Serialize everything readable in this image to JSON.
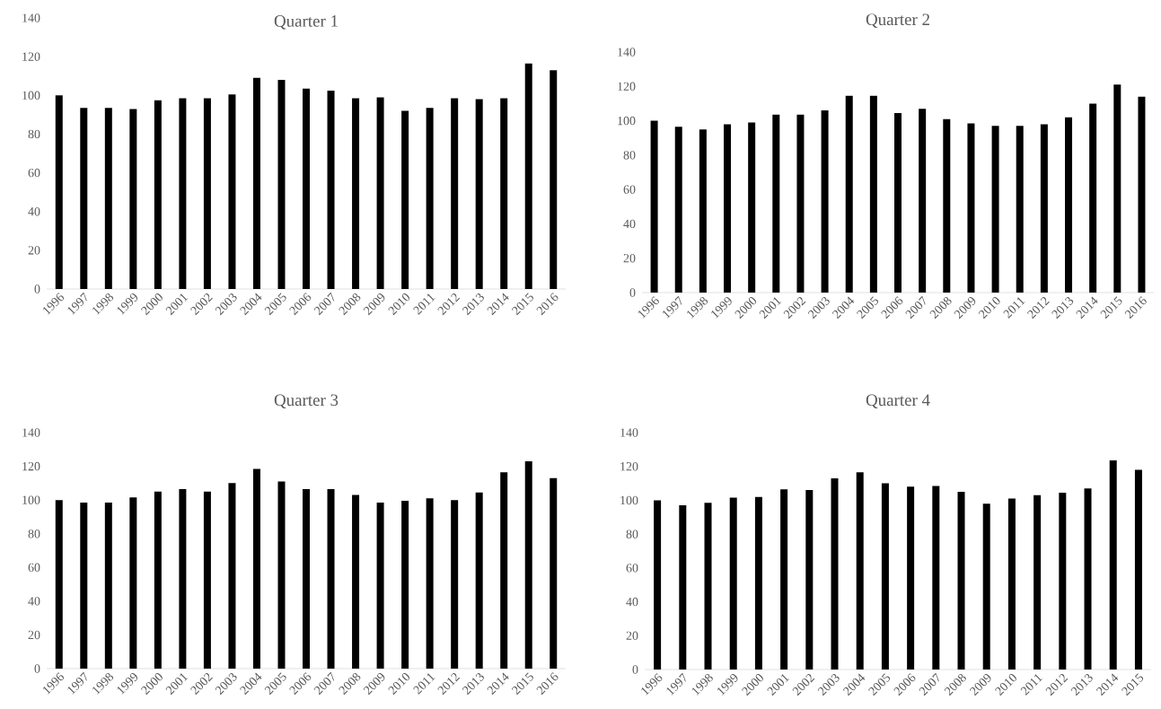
{
  "chart_data": [
    {
      "type": "bar",
      "title": "Quarter 1",
      "color": "#000000",
      "ylim": [
        0,
        140
      ],
      "yticks": [
        0,
        20,
        40,
        60,
        80,
        100,
        120,
        140
      ],
      "categories": [
        "1996",
        "1997",
        "1998",
        "1999",
        "2000",
        "2001",
        "2002",
        "2003",
        "2004",
        "2005",
        "2006",
        "2007",
        "2008",
        "2009",
        "2010",
        "2011",
        "2012",
        "2013",
        "2014",
        "2015",
        "2016"
      ],
      "values": [
        100,
        93.5,
        93.5,
        93,
        97.5,
        98.5,
        98.5,
        100.5,
        109,
        108,
        103.5,
        102.5,
        98.5,
        99,
        92,
        93.5,
        98.5,
        98,
        98.5,
        116.5,
        113
      ]
    },
    {
      "type": "bar",
      "title": "Quarter 2",
      "color": "#000000",
      "ylim": [
        0,
        140
      ],
      "yticks": [
        0,
        20,
        40,
        60,
        80,
        100,
        120,
        140
      ],
      "categories": [
        "1996",
        "1997",
        "1998",
        "1999",
        "2000",
        "2001",
        "2002",
        "2003",
        "2004",
        "2005",
        "2006",
        "2007",
        "2008",
        "2009",
        "2010",
        "2011",
        "2012",
        "2013",
        "2014",
        "2015",
        "2016"
      ],
      "values": [
        100,
        96.5,
        95,
        98,
        99,
        103.5,
        103.5,
        106,
        114.5,
        114.5,
        104.5,
        107,
        101,
        98.5,
        97,
        97,
        98,
        102,
        110,
        121,
        114
      ]
    },
    {
      "type": "bar",
      "title": "Quarter 3",
      "color": "#000000",
      "ylim": [
        0,
        140
      ],
      "yticks": [
        0,
        20,
        40,
        60,
        80,
        100,
        120,
        140
      ],
      "categories": [
        "1996",
        "1997",
        "1998",
        "1999",
        "2000",
        "2001",
        "2002",
        "2003",
        "2004",
        "2005",
        "2006",
        "2007",
        "2008",
        "2009",
        "2010",
        "2011",
        "2012",
        "2013",
        "2014",
        "2015",
        "2016"
      ],
      "values": [
        100,
        98.5,
        98.5,
        101.5,
        105,
        106.5,
        105,
        110,
        118.5,
        111,
        106.5,
        106.5,
        103,
        98.5,
        99.5,
        101,
        100,
        104.5,
        116.5,
        123,
        113
      ]
    },
    {
      "type": "bar",
      "title": "Quarter 4",
      "color": "#000000",
      "ylim": [
        0,
        140
      ],
      "yticks": [
        0,
        20,
        40,
        60,
        80,
        100,
        120,
        140
      ],
      "categories": [
        "1996",
        "1997",
        "1998",
        "1999",
        "2000",
        "2001",
        "2002",
        "2003",
        "2004",
        "2005",
        "2006",
        "2007",
        "2008",
        "2009",
        "2010",
        "2011",
        "2012",
        "2013",
        "2014",
        "2015"
      ],
      "values": [
        100,
        97,
        98.5,
        101.5,
        102,
        106.5,
        106,
        113,
        116.5,
        110,
        108,
        108.5,
        105,
        98,
        101,
        103,
        104.5,
        107,
        123.5,
        118
      ]
    }
  ]
}
